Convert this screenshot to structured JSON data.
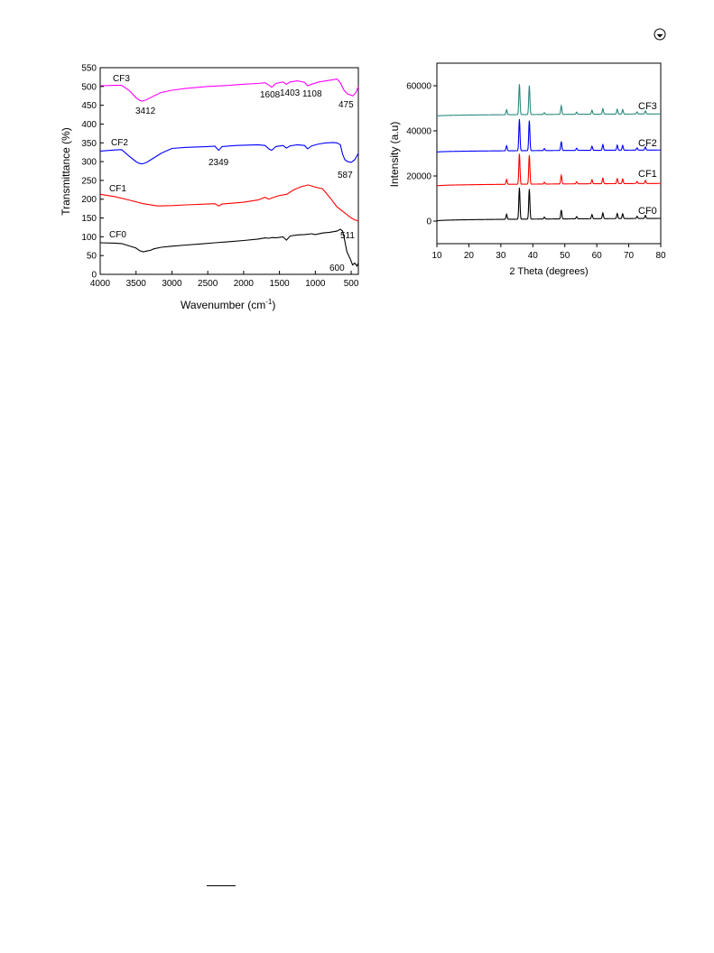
{
  "page": {
    "corner_icon": "crossmark-icon"
  },
  "chart_data": [
    {
      "type": "line",
      "xlabel": "Wavenumber (cm-1)",
      "xlabel_main": "Wavenumber (cm",
      "xlabel_sup": "-1",
      "xlabel_end": ")",
      "ylabel": "Transmittance (%)",
      "xlim": [
        4000,
        400
      ],
      "ylim": [
        0,
        550
      ],
      "xticks": [
        4000,
        3500,
        3000,
        2500,
        2000,
        1500,
        1000,
        500
      ],
      "yticks": [
        0,
        50,
        100,
        150,
        200,
        250,
        300,
        350,
        400,
        450,
        500,
        550
      ],
      "grid": false,
      "series": [
        {
          "name": "CF3",
          "color": "#ff00ff",
          "x": [
            4000,
            3800,
            3700,
            3600,
            3500,
            3450,
            3412,
            3350,
            3250,
            3150,
            3000,
            2800,
            2500,
            2200,
            2000,
            1800,
            1700,
            1650,
            1608,
            1550,
            1450,
            1403,
            1350,
            1250,
            1150,
            1108,
            1050,
            950,
            850,
            750,
            700,
            650,
            600,
            550,
            475,
            430,
            400
          ],
          "y": [
            502,
            503,
            503,
            490,
            470,
            463,
            461,
            465,
            475,
            484,
            490,
            495,
            500,
            503,
            506,
            508,
            510,
            504,
            498,
            508,
            512,
            506,
            512,
            515,
            511,
            502,
            506,
            512,
            515,
            518,
            520,
            510,
            490,
            480,
            475,
            485,
            500
          ]
        },
        {
          "name": "CF2",
          "color": "#0000ff",
          "x": [
            4000,
            3800,
            3700,
            3600,
            3500,
            3450,
            3412,
            3350,
            3250,
            3150,
            3000,
            2800,
            2500,
            2400,
            2349,
            2300,
            2100,
            1800,
            1700,
            1650,
            1608,
            1550,
            1450,
            1403,
            1350,
            1250,
            1150,
            1108,
            1050,
            950,
            850,
            750,
            700,
            650,
            620,
            587,
            550,
            500,
            450,
            400
          ],
          "y": [
            328,
            331,
            332,
            315,
            300,
            295,
            294,
            298,
            310,
            322,
            335,
            338,
            340,
            341,
            330,
            340,
            343,
            345,
            343,
            334,
            330,
            340,
            343,
            336,
            342,
            345,
            343,
            334,
            342,
            347,
            350,
            351,
            350,
            345,
            320,
            305,
            300,
            298,
            305,
            322
          ]
        },
        {
          "name": "CF1",
          "color": "#ff0000",
          "x": [
            4000,
            3800,
            3600,
            3400,
            3200,
            3000,
            2800,
            2500,
            2400,
            2349,
            2300,
            2000,
            1800,
            1700,
            1650,
            1600,
            1500,
            1400,
            1300,
            1200,
            1100,
            1000,
            900,
            800,
            700,
            600,
            500,
            450,
            400
          ],
          "y": [
            213,
            207,
            198,
            188,
            182,
            183,
            185,
            187,
            188,
            182,
            187,
            192,
            198,
            205,
            200,
            204,
            210,
            213,
            225,
            233,
            238,
            232,
            228,
            205,
            180,
            165,
            150,
            145,
            142
          ]
        },
        {
          "name": "CF0",
          "color": "#000000",
          "x": [
            4000,
            3800,
            3700,
            3600,
            3500,
            3450,
            3400,
            3350,
            3300,
            3250,
            3150,
            3000,
            2800,
            2600,
            2400,
            2200,
            2000,
            1800,
            1700,
            1650,
            1600,
            1550,
            1450,
            1403,
            1350,
            1250,
            1150,
            1050,
            1000,
            900,
            800,
            700,
            650,
            620,
            600,
            560,
            511,
            480,
            450,
            420,
            400
          ],
          "y": [
            84,
            83,
            82,
            76,
            70,
            63,
            60,
            62,
            64,
            68,
            72,
            75,
            78,
            81,
            84,
            87,
            90,
            94,
            97,
            96,
            98,
            97,
            100,
            91,
            102,
            105,
            106,
            108,
            106,
            110,
            112,
            115,
            120,
            115,
            100,
            60,
            40,
            25,
            30,
            22,
            30
          ]
        }
      ],
      "series_labels": [
        "CF3",
        "CF2",
        "CF1",
        "CF0"
      ],
      "annotations": [
        "3412",
        "1608",
        "1403",
        "1108",
        "475",
        "2349",
        "587",
        "511",
        "600"
      ]
    },
    {
      "type": "line",
      "xlabel": "2 Theta (degrees)",
      "ylabel": "Intensity (a.u)",
      "xlim": [
        10,
        80
      ],
      "ylim": [
        -10000,
        70000
      ],
      "xticks": [
        10,
        20,
        30,
        40,
        50,
        60,
        70,
        80
      ],
      "yticks": [
        0,
        20000,
        40000,
        60000
      ],
      "grid": false,
      "peaks": [
        {
          "x": 31.8,
          "h": 0.16
        },
        {
          "x": 35.8,
          "h": 1.0
        },
        {
          "x": 38.9,
          "h": 0.95
        },
        {
          "x": 43.6,
          "h": 0.06
        },
        {
          "x": 48.9,
          "h": 0.28
        },
        {
          "x": 53.7,
          "h": 0.07
        },
        {
          "x": 58.5,
          "h": 0.13
        },
        {
          "x": 61.9,
          "h": 0.18
        },
        {
          "x": 66.4,
          "h": 0.16
        },
        {
          "x": 68.1,
          "h": 0.15
        },
        {
          "x": 72.6,
          "h": 0.07
        },
        {
          "x": 75.2,
          "h": 0.1
        }
      ],
      "series": [
        {
          "name": "CF3",
          "color": "#2a8a80",
          "baseline_start": 46500,
          "baseline_end": 47500,
          "peak_height": 13500
        },
        {
          "name": "CF2",
          "color": "#0000ff",
          "baseline_start": 30500,
          "baseline_end": 31500,
          "peak_height": 14000
        },
        {
          "name": "CF1",
          "color": "#ff0000",
          "baseline_start": 15500,
          "baseline_end": 16700,
          "peak_height": 13500
        },
        {
          "name": "CF0",
          "color": "#000000",
          "baseline_start": 0,
          "baseline_end": 1200,
          "peak_height": 14000
        }
      ],
      "series_labels": [
        "CF3",
        "CF2",
        "CF1",
        "CF0"
      ]
    }
  ]
}
